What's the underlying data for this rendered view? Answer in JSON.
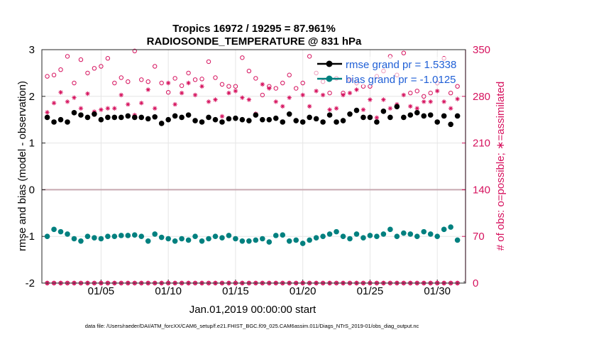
{
  "chart_data": {
    "type": "scatter",
    "title_line1": "Tropics 16972 / 19295 = 87.961%",
    "title_line2": "RADIOSONDE_TEMPERATURE @ 831 hPa",
    "ylabel_left": "rmse and bias (model - observation)",
    "ylabel_right": "# of obs: o=possible; ∗=assimilated",
    "xlabel": "Jan.01,2019 00:00:00 start",
    "footer": "data file: /Users/raeder/DAI/ATM_forcXX/CAM6_setup/f.e21.FHIST_BGC.f09_025.CAM6assim.011/Diags_NTrS_2019-01/obs_diag_output.nc",
    "ylim_left": [
      -2,
      3
    ],
    "ylim_right": [
      0,
      350
    ],
    "xlim": [
      0.6,
      32.1
    ],
    "left_ticks": [
      "-2",
      "-1",
      "0",
      "1",
      "2",
      "3"
    ],
    "right_ticks": [
      "0",
      "70",
      "140",
      "210",
      "280",
      "350"
    ],
    "x_ticks": [
      {
        "x": 5,
        "label": "01/05"
      },
      {
        "x": 10,
        "label": "01/10"
      },
      {
        "x": 15,
        "label": "01/15"
      },
      {
        "x": 20,
        "label": "01/20"
      },
      {
        "x": 25,
        "label": "01/25"
      },
      {
        "x": 30,
        "label": "01/30"
      }
    ],
    "zero_line": 0,
    "legend": [
      {
        "name": "rmse grand pr = 1.5338",
        "color": "#000000"
      },
      {
        "name": "bias grand pr = -1.0125",
        "color": "#00807f"
      }
    ],
    "colors": {
      "rmse": "#000000",
      "bias": "#00807f",
      "obs": "#d6125e",
      "zero": "#c8a8b0"
    },
    "series": [
      {
        "name": "rmse",
        "x": [
          1.0,
          1.5,
          2.0,
          2.5,
          3.0,
          3.5,
          4.0,
          4.5,
          5.0,
          5.5,
          6.0,
          6.5,
          7.0,
          7.5,
          8.0,
          8.5,
          9.0,
          9.5,
          10.0,
          10.5,
          11.0,
          11.5,
          12.0,
          12.5,
          13.0,
          13.5,
          14.0,
          14.5,
          15.0,
          15.5,
          16.0,
          16.5,
          17.0,
          17.5,
          18.0,
          18.5,
          19.0,
          19.5,
          20.0,
          20.5,
          21.0,
          21.5,
          22.0,
          22.5,
          23.0,
          23.5,
          24.0,
          24.5,
          25.0,
          25.5,
          26.0,
          26.5,
          27.0,
          27.5,
          28.0,
          28.5,
          29.0,
          29.5,
          30.0,
          30.5,
          31.0,
          31.5
        ],
        "values": [
          1.55,
          1.45,
          1.5,
          1.45,
          1.65,
          1.6,
          1.55,
          1.62,
          1.5,
          1.55,
          1.55,
          1.55,
          1.58,
          1.55,
          1.55,
          1.52,
          1.56,
          1.42,
          1.5,
          1.58,
          1.55,
          1.6,
          1.48,
          1.45,
          1.55,
          1.5,
          1.45,
          1.52,
          1.53,
          1.5,
          1.48,
          1.6,
          1.5,
          1.5,
          1.53,
          1.45,
          1.62,
          1.48,
          1.45,
          1.55,
          1.52,
          1.45,
          1.6,
          1.45,
          1.48,
          1.62,
          1.7,
          1.55,
          1.55,
          1.45,
          1.68,
          1.55,
          1.78,
          1.55,
          1.6,
          1.65,
          1.58,
          1.6,
          1.45,
          1.58,
          1.4,
          1.58
        ]
      },
      {
        "name": "bias",
        "x": [
          1.0,
          1.5,
          2.0,
          2.5,
          3.0,
          3.5,
          4.0,
          4.5,
          5.0,
          5.5,
          6.0,
          6.5,
          7.0,
          7.5,
          8.0,
          8.5,
          9.0,
          9.5,
          10.0,
          10.5,
          11.0,
          11.5,
          12.0,
          12.5,
          13.0,
          13.5,
          14.0,
          14.5,
          15.0,
          15.5,
          16.0,
          16.5,
          17.0,
          17.5,
          18.0,
          18.5,
          19.0,
          19.5,
          20.0,
          20.5,
          21.0,
          21.5,
          22.0,
          22.5,
          23.0,
          23.5,
          24.0,
          24.5,
          25.0,
          25.5,
          26.0,
          26.5,
          27.0,
          27.5,
          28.0,
          28.5,
          29.0,
          29.5,
          30.0,
          30.5,
          31.0,
          31.5
        ],
        "values": [
          -1.0,
          -0.85,
          -0.9,
          -0.95,
          -1.05,
          -1.1,
          -1.0,
          -1.03,
          -1.05,
          -1.0,
          -1.0,
          -0.98,
          -0.98,
          -0.97,
          -1.0,
          -1.1,
          -0.95,
          -1.02,
          -1.05,
          -1.1,
          -1.05,
          -1.08,
          -1.0,
          -1.1,
          -1.05,
          -1.0,
          -1.03,
          -0.98,
          -1.05,
          -1.1,
          -1.1,
          -1.08,
          -1.05,
          -1.12,
          -0.98,
          -0.97,
          -1.1,
          -1.08,
          -1.15,
          -1.08,
          -1.03,
          -1.0,
          -0.95,
          -0.9,
          -1.0,
          -1.05,
          -0.95,
          -1.03,
          -0.98,
          -1.0,
          -0.95,
          -0.85,
          -1.0,
          -0.93,
          -0.95,
          -1.0,
          -0.9,
          -0.95,
          -1.0,
          -0.85,
          -0.8,
          -1.08
        ]
      },
      {
        "name": "obs_possible",
        "x": [
          1.0,
          1.5,
          2.0,
          2.5,
          3.0,
          3.5,
          4.0,
          4.5,
          5.0,
          5.5,
          6.0,
          6.5,
          7.0,
          7.5,
          8.0,
          8.5,
          9.0,
          9.5,
          10.0,
          10.5,
          11.0,
          11.5,
          12.0,
          12.5,
          13.0,
          13.5,
          14.0,
          14.5,
          15.0,
          15.5,
          16.0,
          16.5,
          17.0,
          17.5,
          18.0,
          18.5,
          19.0,
          19.5,
          20.0,
          20.5,
          21.0,
          21.5,
          22.0,
          22.5,
          23.0,
          23.5,
          24.0,
          24.5,
          25.0,
          25.5,
          26.0,
          26.5,
          27.0,
          27.5,
          28.0,
          28.5,
          29.0,
          29.5,
          30.0,
          30.5,
          31.0,
          31.5
        ],
        "values": [
          310,
          312,
          320,
          340,
          300,
          335,
          315,
          322,
          325,
          337,
          300,
          308,
          302,
          348,
          305,
          302,
          325,
          300,
          286,
          307,
          296,
          315,
          305,
          306,
          332,
          308,
          298,
          295,
          295,
          338,
          318,
          307,
          282,
          295,
          292,
          300,
          312,
          292,
          300,
          340,
          315,
          302,
          285,
          307,
          285,
          305,
          300,
          295,
          295,
          310,
          318,
          340,
          312,
          345,
          285,
          288,
          280,
          285,
          300,
          337,
          285,
          295
        ]
      },
      {
        "name": "obs_assimilated",
        "x": [
          1.0,
          1.5,
          2.0,
          2.5,
          3.0,
          3.5,
          4.0,
          4.5,
          5.0,
          5.5,
          6.0,
          6.5,
          7.0,
          7.5,
          8.0,
          8.5,
          9.0,
          9.5,
          10.0,
          10.5,
          11.0,
          11.5,
          12.0,
          12.5,
          13.0,
          13.5,
          14.0,
          14.5,
          15.0,
          15.5,
          16.0,
          16.5,
          17.0,
          17.5,
          18.0,
          18.5,
          19.0,
          19.5,
          20.0,
          20.5,
          21.0,
          21.5,
          22.0,
          22.5,
          23.0,
          23.5,
          24.0,
          24.5,
          25.0,
          25.5,
          26.0,
          26.5,
          27.0,
          27.5,
          28.0,
          28.5,
          29.0,
          29.5,
          30.0,
          30.5,
          31.0,
          31.5
        ],
        "values": [
          256,
          270,
          286,
          272,
          278,
          262,
          284,
          257,
          260,
          262,
          262,
          282,
          268,
          252,
          270,
          290,
          262,
          240,
          300,
          268,
          285,
          300,
          282,
          295,
          272,
          275,
          250,
          285,
          288,
          278,
          275,
          254,
          298,
          292,
          272,
          265,
          278,
          244,
          282,
          265,
          288,
          282,
          260,
          262,
          282,
          285,
          290,
          260,
          275,
          248,
          275,
          262,
          268,
          282,
          265,
          262,
          272,
          272,
          288,
          272,
          262,
          276
        ]
      },
      {
        "name": "obs_zero",
        "x": [
          1.0,
          1.5,
          2.0,
          2.5,
          3.0,
          3.5,
          4.0,
          4.5,
          5.0,
          5.5,
          6.0,
          6.5,
          7.0,
          7.5,
          8.0,
          8.5,
          9.0,
          9.5,
          10.0,
          10.5,
          11.0,
          11.5,
          12.0,
          12.5,
          13.0,
          13.5,
          14.0,
          14.5,
          15.0,
          15.5,
          16.0,
          16.5,
          17.0,
          17.5,
          18.0,
          18.5,
          19.0,
          19.5,
          20.0,
          20.5,
          21.0,
          21.5,
          22.0,
          22.5,
          23.0,
          23.5,
          24.0,
          24.5,
          25.0,
          25.5,
          26.0,
          26.5,
          27.0,
          27.5,
          28.0,
          28.5,
          29.0,
          29.5,
          30.0,
          30.5,
          31.0,
          31.5
        ],
        "values": [
          0,
          0,
          0,
          0,
          0,
          0,
          0,
          0,
          0,
          0,
          0,
          0,
          0,
          0,
          0,
          0,
          0,
          0,
          0,
          0,
          0,
          0,
          0,
          0,
          0,
          0,
          0,
          0,
          0,
          0,
          0,
          0,
          0,
          0,
          0,
          0,
          0,
          0,
          0,
          0,
          0,
          0,
          0,
          0,
          0,
          0,
          0,
          0,
          0,
          0,
          0,
          0,
          0,
          0,
          0,
          0,
          0,
          0,
          0,
          0,
          0,
          0
        ]
      }
    ]
  }
}
